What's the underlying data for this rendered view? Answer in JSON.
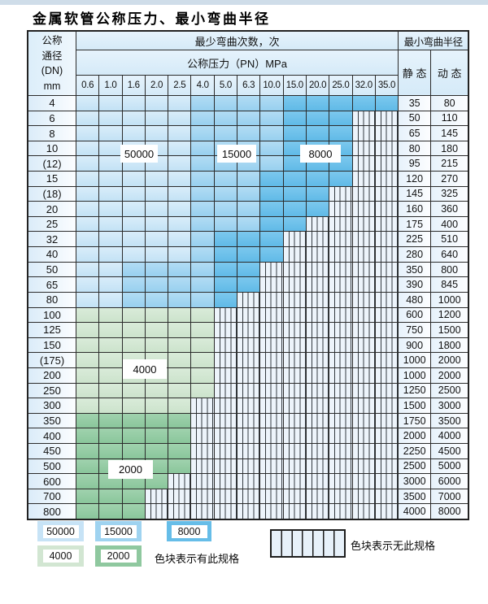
{
  "title": "金属软管公称压力、最小弯曲半径",
  "table": {
    "corner_lines": [
      "公称",
      "通径",
      "(DN)",
      "mm"
    ],
    "bend_cycles_header": "最少弯曲次数，次",
    "pressure_header": "公称压力（PN）MPa",
    "radius_header": "最小弯曲半径",
    "static_header": "静 态",
    "dynamic_header": "动 态",
    "pressures": [
      "0.6",
      "1.0",
      "1.6",
      "2.0",
      "2.5",
      "4.0",
      "5.0",
      "6.3",
      "10.0",
      "15.0",
      "20.0",
      "25.0",
      "32.0",
      "35.0"
    ],
    "zone_key": {
      "l": "50000",
      "m": "15000",
      "d": "8000",
      "g4": "4000",
      "g2": "2000",
      "h": "无此规格"
    },
    "rows": [
      {
        "dn": "4",
        "zones": [
          "l",
          "l",
          "l",
          "l",
          "l",
          "m",
          "m",
          "m",
          "m",
          "d",
          "d",
          "d",
          "d",
          "d"
        ],
        "static": "35",
        "dynamic": "80"
      },
      {
        "dn": "6",
        "zones": [
          "l",
          "l",
          "l",
          "l",
          "l",
          "m",
          "m",
          "m",
          "m",
          "d",
          "d",
          "d",
          "h",
          "h"
        ],
        "static": "50",
        "dynamic": "110"
      },
      {
        "dn": "8",
        "zones": [
          "l",
          "l",
          "l",
          "l",
          "l",
          "m",
          "m",
          "m",
          "m",
          "d",
          "d",
          "d",
          "h",
          "h"
        ],
        "static": "65",
        "dynamic": "145"
      },
      {
        "dn": "10",
        "zones": [
          "l",
          "l",
          "l",
          "l",
          "l",
          "m",
          "m",
          "m",
          "m",
          "d",
          "d",
          "d",
          "h",
          "h"
        ],
        "static": "80",
        "dynamic": "180"
      },
      {
        "dn": "(12)",
        "zones": [
          "l",
          "l",
          "l",
          "l",
          "l",
          "m",
          "m",
          "m",
          "m",
          "d",
          "d",
          "d",
          "h",
          "h"
        ],
        "static": "95",
        "dynamic": "215"
      },
      {
        "dn": "15",
        "zones": [
          "l",
          "l",
          "l",
          "l",
          "l",
          "m",
          "m",
          "m",
          "d",
          "d",
          "d",
          "d",
          "h",
          "h"
        ],
        "static": "120",
        "dynamic": "270"
      },
      {
        "dn": "(18)",
        "zones": [
          "l",
          "l",
          "l",
          "l",
          "l",
          "m",
          "m",
          "m",
          "d",
          "d",
          "d",
          "h",
          "h",
          "h"
        ],
        "static": "145",
        "dynamic": "325"
      },
      {
        "dn": "20",
        "zones": [
          "l",
          "l",
          "l",
          "l",
          "l",
          "m",
          "m",
          "m",
          "d",
          "d",
          "d",
          "h",
          "h",
          "h"
        ],
        "static": "160",
        "dynamic": "360"
      },
      {
        "dn": "25",
        "zones": [
          "l",
          "l",
          "l",
          "l",
          "l",
          "m",
          "m",
          "m",
          "d",
          "d",
          "h",
          "h",
          "h",
          "h"
        ],
        "static": "175",
        "dynamic": "400"
      },
      {
        "dn": "32",
        "zones": [
          "l",
          "l",
          "l",
          "l",
          "l",
          "m",
          "d",
          "d",
          "d",
          "h",
          "h",
          "h",
          "h",
          "h"
        ],
        "static": "225",
        "dynamic": "510"
      },
      {
        "dn": "40",
        "zones": [
          "l",
          "l",
          "l",
          "l",
          "l",
          "m",
          "d",
          "d",
          "d",
          "h",
          "h",
          "h",
          "h",
          "h"
        ],
        "static": "280",
        "dynamic": "640"
      },
      {
        "dn": "50",
        "zones": [
          "l",
          "l",
          "m",
          "m",
          "m",
          "m",
          "d",
          "d",
          "h",
          "h",
          "h",
          "h",
          "h",
          "h"
        ],
        "static": "350",
        "dynamic": "800"
      },
      {
        "dn": "65",
        "zones": [
          "l",
          "l",
          "m",
          "m",
          "m",
          "m",
          "d",
          "d",
          "h",
          "h",
          "h",
          "h",
          "h",
          "h"
        ],
        "static": "390",
        "dynamic": "845"
      },
      {
        "dn": "80",
        "zones": [
          "l",
          "l",
          "m",
          "m",
          "m",
          "m",
          "d",
          "h",
          "h",
          "h",
          "h",
          "h",
          "h",
          "h"
        ],
        "static": "480",
        "dynamic": "1000"
      },
      {
        "dn": "100",
        "zones": [
          "g4",
          "g4",
          "g4",
          "g4",
          "g4",
          "g4",
          "h",
          "h",
          "h",
          "h",
          "h",
          "h",
          "h",
          "h"
        ],
        "static": "600",
        "dynamic": "1200"
      },
      {
        "dn": "125",
        "zones": [
          "g4",
          "g4",
          "g4",
          "g4",
          "g4",
          "g4",
          "h",
          "h",
          "h",
          "h",
          "h",
          "h",
          "h",
          "h"
        ],
        "static": "750",
        "dynamic": "1500"
      },
      {
        "dn": "150",
        "zones": [
          "g4",
          "g4",
          "g4",
          "g4",
          "g4",
          "g4",
          "h",
          "h",
          "h",
          "h",
          "h",
          "h",
          "h",
          "h"
        ],
        "static": "900",
        "dynamic": "1800"
      },
      {
        "dn": "(175)",
        "zones": [
          "g4",
          "g4",
          "g4",
          "g4",
          "g4",
          "g4",
          "h",
          "h",
          "h",
          "h",
          "h",
          "h",
          "h",
          "h"
        ],
        "static": "1000",
        "dynamic": "2000"
      },
      {
        "dn": "200",
        "zones": [
          "g4",
          "g4",
          "g4",
          "g4",
          "g4",
          "g4",
          "h",
          "h",
          "h",
          "h",
          "h",
          "h",
          "h",
          "h"
        ],
        "static": "1000",
        "dynamic": "2000"
      },
      {
        "dn": "250",
        "zones": [
          "g4",
          "g4",
          "g4",
          "g4",
          "g4",
          "g4",
          "h",
          "h",
          "h",
          "h",
          "h",
          "h",
          "h",
          "h"
        ],
        "static": "1250",
        "dynamic": "2500"
      },
      {
        "dn": "300",
        "zones": [
          "g4",
          "g4",
          "g4",
          "g4",
          "g4",
          "h",
          "h",
          "h",
          "h",
          "h",
          "h",
          "h",
          "h",
          "h"
        ],
        "static": "1500",
        "dynamic": "3000"
      },
      {
        "dn": "350",
        "zones": [
          "g2",
          "g2",
          "g2",
          "g2",
          "g2",
          "h",
          "h",
          "h",
          "h",
          "h",
          "h",
          "h",
          "h",
          "h"
        ],
        "static": "1750",
        "dynamic": "3500"
      },
      {
        "dn": "400",
        "zones": [
          "g2",
          "g2",
          "g2",
          "g2",
          "g2",
          "h",
          "h",
          "h",
          "h",
          "h",
          "h",
          "h",
          "h",
          "h"
        ],
        "static": "2000",
        "dynamic": "4000"
      },
      {
        "dn": "450",
        "zones": [
          "g2",
          "g2",
          "g2",
          "g2",
          "g2",
          "h",
          "h",
          "h",
          "h",
          "h",
          "h",
          "h",
          "h",
          "h"
        ],
        "static": "2250",
        "dynamic": "4500"
      },
      {
        "dn": "500",
        "zones": [
          "g2",
          "g2",
          "g2",
          "g2",
          "g2",
          "h",
          "h",
          "h",
          "h",
          "h",
          "h",
          "h",
          "h",
          "h"
        ],
        "static": "2500",
        "dynamic": "5000"
      },
      {
        "dn": "600",
        "zones": [
          "g2",
          "g2",
          "g2",
          "g2",
          "h",
          "h",
          "h",
          "h",
          "h",
          "h",
          "h",
          "h",
          "h",
          "h"
        ],
        "static": "3000",
        "dynamic": "6000"
      },
      {
        "dn": "700",
        "zones": [
          "g2",
          "g2",
          "g2",
          "h",
          "h",
          "h",
          "h",
          "h",
          "h",
          "h",
          "h",
          "h",
          "h",
          "h"
        ],
        "static": "3500",
        "dynamic": "7000"
      },
      {
        "dn": "800",
        "zones": [
          "g2",
          "g2",
          "g2",
          "h",
          "h",
          "h",
          "h",
          "h",
          "h",
          "h",
          "h",
          "h",
          "h",
          "h"
        ],
        "static": "4000",
        "dynamic": "8000"
      }
    ]
  },
  "zone_labels": [
    {
      "text": "50000"
    },
    {
      "text": "15000"
    },
    {
      "text": "8000"
    },
    {
      "text": "4000"
    },
    {
      "text": "2000"
    }
  ],
  "legend": {
    "items": [
      {
        "value": "50000"
      },
      {
        "value": "15000"
      },
      {
        "value": "8000"
      },
      {
        "value": "4000"
      },
      {
        "value": "2000"
      }
    ],
    "has_spec_note": "色块表示有此规格",
    "no_spec_note": "色块表示无此规格"
  },
  "colors": {
    "cycles_50000": "#c7e3f6",
    "cycles_15000": "#9fd3f0",
    "cycles_8000": "#66bde8",
    "cycles_4000": "#d2e6d2",
    "cycles_2000": "#8fc89f",
    "no_spec_bg": "#edf4fb",
    "grid_line": "#2b2b2b",
    "header_bg": "#ddeefa"
  }
}
